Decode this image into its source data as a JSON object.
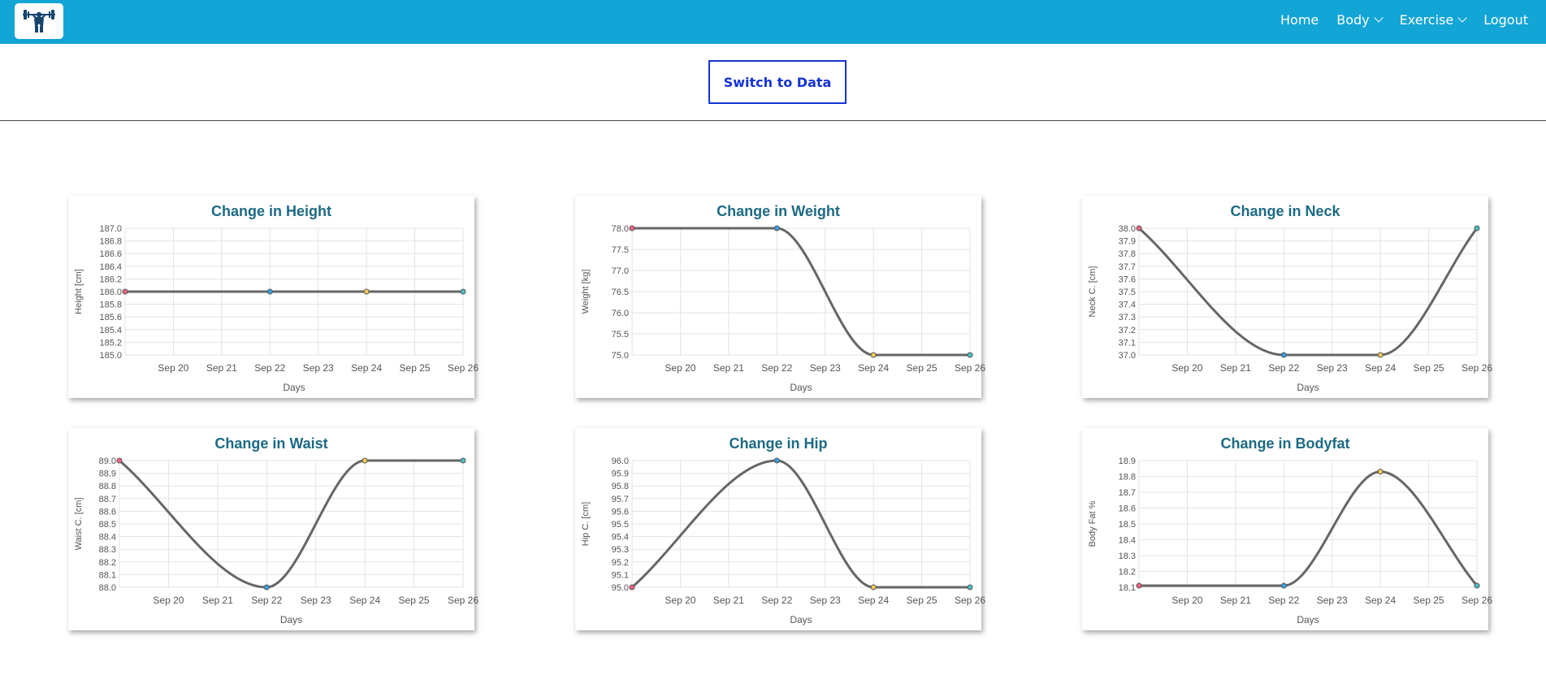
{
  "navbar": {
    "logo_icon": "weightlifter-logo-icon",
    "links": [
      {
        "label": "Home"
      },
      {
        "label": "Body",
        "dropdown": true
      },
      {
        "label": "Exercise",
        "dropdown": true
      },
      {
        "label": "Logout"
      }
    ]
  },
  "toolbar": {
    "switch_label": "Switch to Data"
  },
  "colors": {
    "navbar": "#12a5d6",
    "button": "#1533d4",
    "title": "#1d6a84",
    "line": "#666666"
  },
  "chart_data": [
    {
      "type": "line",
      "title": "Change in Height",
      "xlabel": "Days",
      "ylabel": "Height [cm]",
      "x_ticks": [
        "Sep 20",
        "Sep 21",
        "Sep 22",
        "Sep 23",
        "Sep 24",
        "Sep 25",
        "Sep 26"
      ],
      "y_ticks": [
        "187.0",
        "186.8",
        "186.6",
        "186.4",
        "186.2",
        "186.0",
        "185.8",
        "185.6",
        "185.4",
        "185.2",
        "185.0"
      ],
      "ylim": [
        185.0,
        187.0
      ],
      "x": [
        "2023-09-19",
        "2023-09-22",
        "2023-09-24",
        "2023-09-26"
      ],
      "values": [
        186.0,
        186.0,
        186.0,
        186.0
      ],
      "point_colors": [
        "#ff6384",
        "#36a2eb",
        "#ffcd56",
        "#4bc0c0"
      ],
      "grid": true
    },
    {
      "type": "line",
      "title": "Change in Weight",
      "xlabel": "Days",
      "ylabel": "Weight [kg]",
      "x_ticks": [
        "Sep 20",
        "Sep 21",
        "Sep 22",
        "Sep 23",
        "Sep 24",
        "Sep 25",
        "Sep 26"
      ],
      "y_ticks": [
        "78.0",
        "77.5",
        "77.0",
        "76.5",
        "76.0",
        "75.5",
        "75.0"
      ],
      "ylim": [
        75.0,
        78.0
      ],
      "x": [
        "2023-09-19",
        "2023-09-22",
        "2023-09-24",
        "2023-09-26"
      ],
      "values": [
        78.0,
        78.0,
        75.0,
        75.0
      ],
      "point_colors": [
        "#ff6384",
        "#36a2eb",
        "#ffcd56",
        "#4bc0c0"
      ],
      "grid": true
    },
    {
      "type": "line",
      "title": "Change in Neck",
      "xlabel": "Days",
      "ylabel": "Neck C. [cm]",
      "x_ticks": [
        "Sep 20",
        "Sep 21",
        "Sep 22",
        "Sep 23",
        "Sep 24",
        "Sep 25",
        "Sep 26"
      ],
      "y_ticks": [
        "38.0",
        "37.9",
        "37.8",
        "37.7",
        "37.6",
        "37.5",
        "37.4",
        "37.3",
        "37.2",
        "37.1",
        "37.0"
      ],
      "ylim": [
        37.0,
        38.0
      ],
      "x": [
        "2023-09-19",
        "2023-09-22",
        "2023-09-24",
        "2023-09-26"
      ],
      "values": [
        38.0,
        37.0,
        37.0,
        38.0
      ],
      "point_colors": [
        "#ff6384",
        "#36a2eb",
        "#ffcd56",
        "#4bc0c0"
      ],
      "grid": true
    },
    {
      "type": "line",
      "title": "Change in Waist",
      "xlabel": "Days",
      "ylabel": "Waist C. [cm]",
      "x_ticks": [
        "Sep 20",
        "Sep 21",
        "Sep 22",
        "Sep 23",
        "Sep 24",
        "Sep 25",
        "Sep 26"
      ],
      "y_ticks": [
        "89.0",
        "88.9",
        "88.8",
        "88.7",
        "88.6",
        "88.5",
        "88.4",
        "88.3",
        "88.2",
        "88.1",
        "88.0"
      ],
      "ylim": [
        88.0,
        89.0
      ],
      "x": [
        "2023-09-19",
        "2023-09-22",
        "2023-09-24",
        "2023-09-26"
      ],
      "values": [
        89.0,
        88.0,
        89.0,
        89.0
      ],
      "point_colors": [
        "#ff6384",
        "#36a2eb",
        "#ffcd56",
        "#4bc0c0"
      ],
      "grid": true
    },
    {
      "type": "line",
      "title": "Change in Hip",
      "xlabel": "Days",
      "ylabel": "Hip C. [cm]",
      "x_ticks": [
        "Sep 20",
        "Sep 21",
        "Sep 22",
        "Sep 23",
        "Sep 24",
        "Sep 25",
        "Sep 26"
      ],
      "y_ticks": [
        "96.0",
        "95.9",
        "95.8",
        "95.7",
        "95.6",
        "95.5",
        "95.4",
        "95.3",
        "95.2",
        "95.1",
        "95.0"
      ],
      "ylim": [
        95.0,
        96.0
      ],
      "x": [
        "2023-09-19",
        "2023-09-22",
        "2023-09-24",
        "2023-09-26"
      ],
      "values": [
        95.0,
        96.0,
        95.0,
        95.0
      ],
      "point_colors": [
        "#ff6384",
        "#36a2eb",
        "#ffcd56",
        "#4bc0c0"
      ],
      "grid": true
    },
    {
      "type": "line",
      "title": "Change in Bodyfat",
      "xlabel": "Days",
      "ylabel": "Body Fat %",
      "x_ticks": [
        "Sep 20",
        "Sep 21",
        "Sep 22",
        "Sep 23",
        "Sep 24",
        "Sep 25",
        "Sep 26"
      ],
      "y_ticks": [
        "18.9",
        "18.8",
        "18.7",
        "18.6",
        "18.5",
        "18.4",
        "18.3",
        "18.2",
        "18.1"
      ],
      "ylim": [
        18.1,
        18.9
      ],
      "x": [
        "2023-09-19",
        "2023-09-22",
        "2023-09-24",
        "2023-09-26"
      ],
      "values": [
        18.11,
        18.11,
        18.83,
        18.11
      ],
      "point_colors": [
        "#ff6384",
        "#36a2eb",
        "#ffcd56",
        "#4bc0c0"
      ],
      "grid": true
    }
  ]
}
